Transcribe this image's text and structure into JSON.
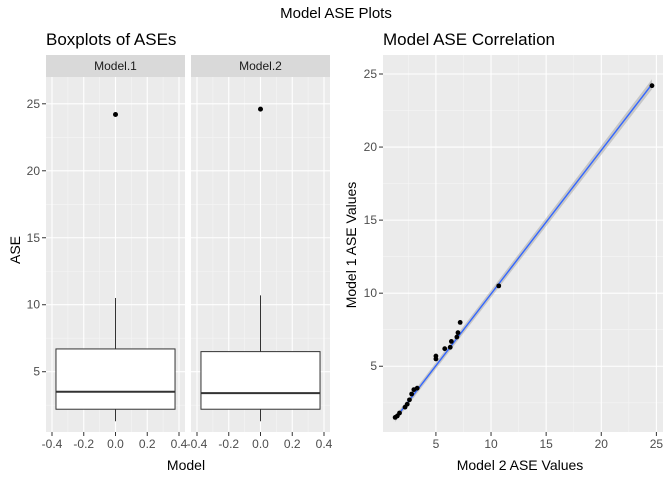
{
  "figure": {
    "title": "Model ASE Plots"
  },
  "chart_data": [
    {
      "type": "boxplot",
      "title": "Boxplots of ASEs",
      "xlabel": "Model",
      "ylabel": "ASE",
      "xlim": [
        -0.4,
        0.4
      ],
      "ylim": [
        0.5,
        27
      ],
      "x_ticks": [
        -0.4,
        -0.2,
        0.0,
        0.2,
        0.4
      ],
      "x_tick_labels": [
        "-0.4",
        "-0.2",
        "0.0",
        "0.2",
        "0.4"
      ],
      "y_ticks": [
        5,
        10,
        15,
        20,
        25
      ],
      "y_tick_labels": [
        "5",
        "10",
        "15",
        "20",
        "25"
      ],
      "grid": true,
      "facets": [
        {
          "label": "Model.1",
          "q1": 2.2,
          "median": 3.5,
          "q3": 6.7,
          "whisker_low": 1.3,
          "whisker_high": 10.5,
          "outliers": [
            24.2
          ]
        },
        {
          "label": "Model.2",
          "q1": 2.2,
          "median": 3.4,
          "q3": 6.5,
          "whisker_low": 1.3,
          "whisker_high": 10.7,
          "outliers": [
            24.6
          ]
        }
      ]
    },
    {
      "type": "scatter",
      "title": "Model ASE Correlation",
      "xlabel": "Model 2 ASE Values",
      "ylabel": "Model 1 ASE Values",
      "xlim": [
        0.2,
        25.6
      ],
      "ylim": [
        0.5,
        26.3
      ],
      "x_ticks": [
        5,
        10,
        15,
        20,
        25
      ],
      "x_tick_labels": [
        "5",
        "10",
        "15",
        "20",
        "25"
      ],
      "y_ticks": [
        5,
        10,
        15,
        20,
        25
      ],
      "y_tick_labels": [
        "5",
        "10",
        "15",
        "20",
        "25"
      ],
      "grid": true,
      "points": [
        {
          "x": 1.3,
          "y": 1.5
        },
        {
          "x": 1.5,
          "y": 1.6
        },
        {
          "x": 1.7,
          "y": 1.8
        },
        {
          "x": 2.2,
          "y": 2.2
        },
        {
          "x": 2.4,
          "y": 2.4
        },
        {
          "x": 2.6,
          "y": 2.7
        },
        {
          "x": 2.8,
          "y": 3.1
        },
        {
          "x": 3.0,
          "y": 3.4
        },
        {
          "x": 3.3,
          "y": 3.5
        },
        {
          "x": 5.0,
          "y": 5.5
        },
        {
          "x": 5.0,
          "y": 5.7
        },
        {
          "x": 5.8,
          "y": 6.2
        },
        {
          "x": 6.3,
          "y": 6.3
        },
        {
          "x": 6.4,
          "y": 6.7
        },
        {
          "x": 6.9,
          "y": 7.0
        },
        {
          "x": 7.0,
          "y": 7.3
        },
        {
          "x": 7.2,
          "y": 8.0
        },
        {
          "x": 10.7,
          "y": 10.5
        },
        {
          "x": 24.6,
          "y": 24.2
        }
      ],
      "fit_line": {
        "x": [
          1.3,
          24.6
        ],
        "y": [
          1.4,
          24.3
        ],
        "color": "#3366FF",
        "band": "#999999"
      }
    }
  ]
}
